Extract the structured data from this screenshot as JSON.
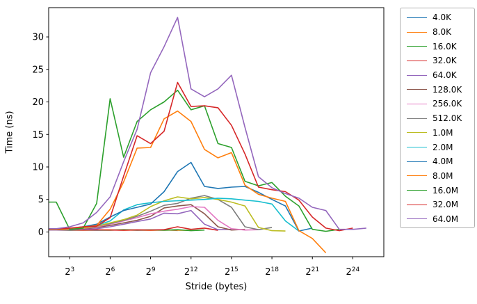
{
  "figure": {
    "xlabel": "Stride (bytes)",
    "ylabel": "Time (ns)",
    "background_color": "#ffffff",
    "axis_color": "#000000",
    "legend_border_color": "#b0b0b0"
  },
  "chart_data": {
    "type": "line",
    "x_scale": "log2",
    "grid": false,
    "legend_position": "outside-right",
    "title": "",
    "xlabel": "Stride (bytes)",
    "ylabel": "Time (ns)",
    "x_tick_base": "2",
    "x_tick_exponents": [
      3,
      6,
      9,
      12,
      15,
      18,
      21,
      24
    ],
    "y_ticks": [
      0,
      5,
      10,
      15,
      20,
      25,
      30
    ],
    "xlim_log2": [
      1.44,
      26.3
    ],
    "ylim": [
      -3.8,
      34.5
    ],
    "x_unit": "stride exponent: x value i means stride 2^i bytes",
    "series": [
      {
        "name": "4.0K",
        "color": "#1f77b4",
        "start_exp": 2,
        "values": [
          0.3,
          0.28,
          0.3,
          0.27,
          0.3,
          0.32,
          0.28,
          0.3,
          0.35,
          0.22
        ]
      },
      {
        "name": "8.0K",
        "color": "#ff7f0e",
        "start_exp": 2,
        "values": [
          0.3,
          0.3,
          0.28,
          0.3,
          0.33,
          0.28,
          0.3,
          0.25,
          0.3,
          0.28,
          0.25
        ]
      },
      {
        "name": "16.0K",
        "color": "#2ca02c",
        "start_exp": 2,
        "values": [
          0.35,
          0.3,
          0.33,
          0.3,
          0.28,
          0.35,
          0.3,
          0.33,
          0.28,
          0.35,
          0.2,
          0.3
        ]
      },
      {
        "name": "32.0K",
        "color": "#d62728",
        "start_exp": 2,
        "values": [
          0.3,
          0.32,
          0.3,
          0.33,
          0.3,
          0.28,
          0.33,
          0.3,
          0.35,
          0.8,
          0.4,
          0.6,
          0.25
        ]
      },
      {
        "name": "64.0K",
        "color": "#9467bd",
        "start_exp": 2,
        "values": [
          0.3,
          0.35,
          0.4,
          0.5,
          0.8,
          1.2,
          1.6,
          2.0,
          2.9,
          2.8,
          3.3,
          1.2,
          0.35,
          0.4
        ]
      },
      {
        "name": "128.0K",
        "color": "#8c564b",
        "start_exp": 2,
        "values": [
          0.35,
          0.4,
          0.5,
          0.7,
          1.0,
          1.4,
          1.8,
          2.4,
          3.7,
          4.0,
          4.2,
          2.8,
          0.8,
          0.3,
          0.4
        ]
      },
      {
        "name": "256.0K",
        "color": "#e377c2",
        "start_exp": 2,
        "values": [
          0.4,
          0.45,
          0.55,
          0.8,
          1.2,
          1.7,
          2.2,
          2.8,
          3.2,
          3.5,
          3.9,
          3.8,
          1.8,
          0.5,
          0.3,
          0.35
        ]
      },
      {
        "name": "512.0K",
        "color": "#7f7f7f",
        "start_exp": 2,
        "values": [
          0.35,
          0.45,
          0.6,
          0.9,
          1.3,
          1.8,
          2.4,
          3.2,
          4.1,
          4.4,
          5.2,
          5.6,
          5.0,
          3.8,
          0.8,
          0.35,
          0.7
        ]
      },
      {
        "name": "1.0M",
        "color": "#bcbd22",
        "start_exp": 2,
        "values": [
          0.35,
          0.45,
          0.6,
          0.9,
          1.4,
          1.9,
          2.6,
          3.9,
          4.8,
          5.4,
          5.1,
          5.3,
          5.0,
          4.6,
          4.0,
          0.7,
          0.2,
          0.15
        ]
      },
      {
        "name": "2.0M",
        "color": "#17becf",
        "start_exp": 2,
        "values": [
          0.4,
          0.5,
          0.7,
          1.0,
          1.7,
          3.4,
          4.2,
          4.5,
          4.7,
          4.8,
          4.9,
          5.0,
          5.2,
          5.1,
          4.9,
          4.7,
          4.3,
          1.7,
          0.15
        ]
      },
      {
        "name": "4.0M",
        "color": "#1f77b4",
        "start_exp": 2,
        "values": [
          0.45,
          0.55,
          0.8,
          1.2,
          2.3,
          3.3,
          3.8,
          4.3,
          6.2,
          9.3,
          10.7,
          7.0,
          6.7,
          6.9,
          7.0,
          6.1,
          5.0,
          4.0,
          0.15,
          0.6
        ]
      },
      {
        "name": "8.0M",
        "color": "#ff7f0e",
        "start_exp": 2,
        "values": [
          0.4,
          0.5,
          0.7,
          1.0,
          3.5,
          7.7,
          12.9,
          13.0,
          17.4,
          18.6,
          17.0,
          12.7,
          11.4,
          12.2,
          7.2,
          5.8,
          5.2,
          4.7,
          0.2,
          -1.0,
          -3.2
        ]
      },
      {
        "name": "16.0M",
        "color": "#2ca02c",
        "start_exp": 2,
        "values": [
          4.6,
          0.4,
          0.6,
          4.4,
          20.5,
          11.5,
          17.0,
          18.8,
          20.0,
          21.8,
          18.8,
          19.4,
          13.6,
          13.0,
          7.8,
          7.1,
          7.6,
          5.5,
          4.0,
          0.4,
          0.1,
          0.4
        ]
      },
      {
        "name": "32.0M",
        "color": "#d62728",
        "start_exp": 2,
        "values": [
          0.45,
          0.6,
          0.8,
          0.9,
          2.2,
          8.6,
          14.8,
          13.6,
          15.5,
          23.0,
          19.3,
          19.4,
          19.1,
          16.4,
          12.0,
          6.9,
          6.5,
          6.2,
          4.9,
          2.3,
          0.6,
          0.2,
          0.6
        ]
      },
      {
        "name": "64.0M",
        "color": "#9467bd",
        "start_exp": 2,
        "values": [
          0.5,
          0.8,
          1.4,
          3.0,
          5.4,
          10.8,
          15.8,
          24.5,
          28.5,
          33.0,
          22.0,
          20.8,
          22.0,
          24.1,
          16.1,
          8.5,
          6.8,
          5.9,
          5.2,
          3.8,
          3.3,
          0.4,
          0.4,
          0.6
        ]
      }
    ]
  }
}
